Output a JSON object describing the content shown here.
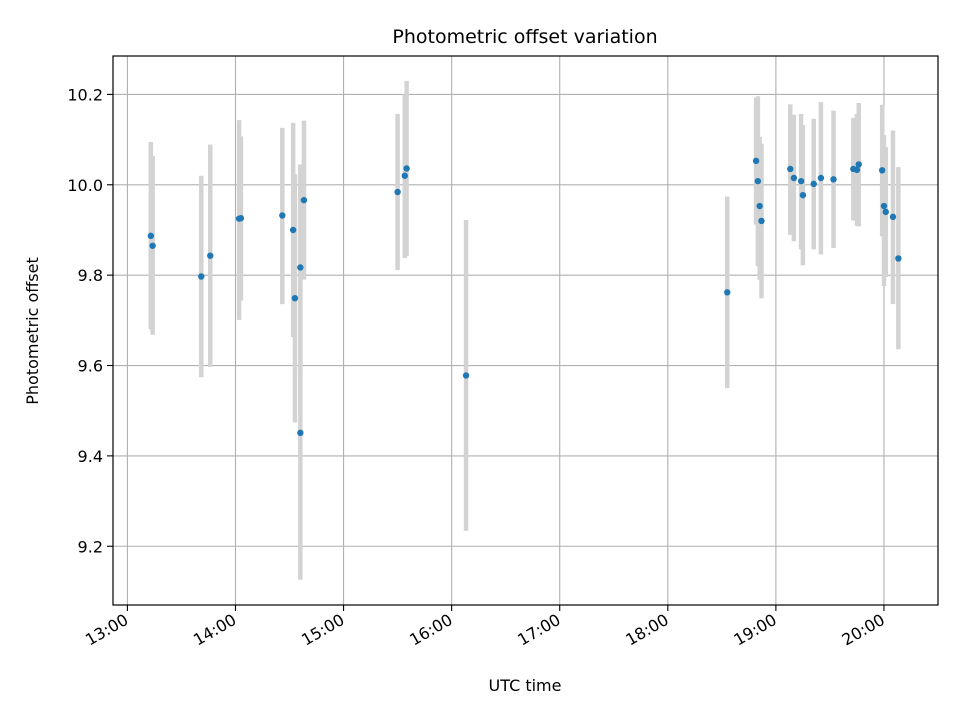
{
  "chart_data": {
    "type": "scatter",
    "title": "Photometric offset variation",
    "xlabel": "UTC time",
    "ylabel": "Photometric offset",
    "x_unit": "UTC",
    "xlim": [
      "12:52",
      "20:30"
    ],
    "ylim": [
      9.07,
      10.285
    ],
    "x_ticks": [
      "13:00",
      "14:00",
      "15:00",
      "16:00",
      "17:00",
      "18:00",
      "19:00",
      "20:00"
    ],
    "y_ticks": [
      9.2,
      9.4,
      9.6,
      9.8,
      10.0,
      10.2
    ],
    "y_tick_labels": [
      "9.2",
      "9.4",
      "9.6",
      "9.8",
      "10.0",
      "10.2"
    ],
    "grid": true,
    "point_color": "#1f77b4",
    "errorbar_color": "#d3d3d3",
    "points": [
      {
        "time": "13:13",
        "value": 9.887,
        "low": 9.68,
        "high": 10.095
      },
      {
        "time": "13:14",
        "value": 9.865,
        "low": 9.668,
        "high": 10.064
      },
      {
        "time": "13:41",
        "value": 9.797,
        "low": 9.574,
        "high": 10.02
      },
      {
        "time": "13:46",
        "value": 9.843,
        "low": 9.597,
        "high": 10.089
      },
      {
        "time": "14:02",
        "value": 9.925,
        "low": 9.701,
        "high": 10.143
      },
      {
        "time": "14:03",
        "value": 9.926,
        "low": 9.744,
        "high": 10.107
      },
      {
        "time": "14:26",
        "value": 9.932,
        "low": 9.736,
        "high": 10.126
      },
      {
        "time": "14:32",
        "value": 9.9,
        "low": 9.663,
        "high": 10.137
      },
      {
        "time": "14:33",
        "value": 9.749,
        "low": 9.474,
        "high": 10.023
      },
      {
        "time": "14:36",
        "value": 9.451,
        "low": 9.126,
        "high": 9.776
      },
      {
        "time": "14:36",
        "value": 9.817,
        "low": 9.589,
        "high": 10.045
      },
      {
        "time": "14:38",
        "value": 9.966,
        "low": 9.79,
        "high": 10.142
      },
      {
        "time": "15:30",
        "value": 9.984,
        "low": 9.811,
        "high": 10.157
      },
      {
        "time": "15:34",
        "value": 10.02,
        "low": 9.838,
        "high": 10.2
      },
      {
        "time": "15:35",
        "value": 10.036,
        "low": 9.842,
        "high": 10.23
      },
      {
        "time": "16:08",
        "value": 9.578,
        "low": 9.234,
        "high": 9.922
      },
      {
        "time": "18:33",
        "value": 9.762,
        "low": 9.55,
        "high": 9.974
      },
      {
        "time": "18:49",
        "value": 10.053,
        "low": 9.912,
        "high": 10.193
      },
      {
        "time": "18:50",
        "value": 10.008,
        "low": 9.82,
        "high": 10.196
      },
      {
        "time": "18:51",
        "value": 9.953,
        "low": 9.79,
        "high": 10.106
      },
      {
        "time": "18:52",
        "value": 9.92,
        "low": 9.749,
        "high": 10.091
      },
      {
        "time": "19:08",
        "value": 10.035,
        "low": 9.889,
        "high": 10.178
      },
      {
        "time": "19:10",
        "value": 10.015,
        "low": 9.875,
        "high": 10.155
      },
      {
        "time": "19:14",
        "value": 10.008,
        "low": 9.857,
        "high": 10.157
      },
      {
        "time": "19:15",
        "value": 9.977,
        "low": 9.822,
        "high": 10.132
      },
      {
        "time": "19:21",
        "value": 10.002,
        "low": 9.857,
        "high": 10.146
      },
      {
        "time": "19:25",
        "value": 10.015,
        "low": 9.846,
        "high": 10.183
      },
      {
        "time": "19:32",
        "value": 10.012,
        "low": 9.86,
        "high": 10.164
      },
      {
        "time": "19:43",
        "value": 10.035,
        "low": 9.921,
        "high": 10.148
      },
      {
        "time": "19:45",
        "value": 10.033,
        "low": 9.909,
        "high": 10.157
      },
      {
        "time": "19:46",
        "value": 10.045,
        "low": 9.908,
        "high": 10.181
      },
      {
        "time": "19:59",
        "value": 10.032,
        "low": 9.886,
        "high": 10.177
      },
      {
        "time": "20:00",
        "value": 9.953,
        "low": 9.776,
        "high": 10.11
      },
      {
        "time": "20:01",
        "value": 9.94,
        "low": 9.796,
        "high": 10.083
      },
      {
        "time": "20:05",
        "value": 9.929,
        "low": 9.736,
        "high": 10.12
      },
      {
        "time": "20:08",
        "value": 9.837,
        "low": 9.636,
        "high": 10.039
      }
    ]
  }
}
